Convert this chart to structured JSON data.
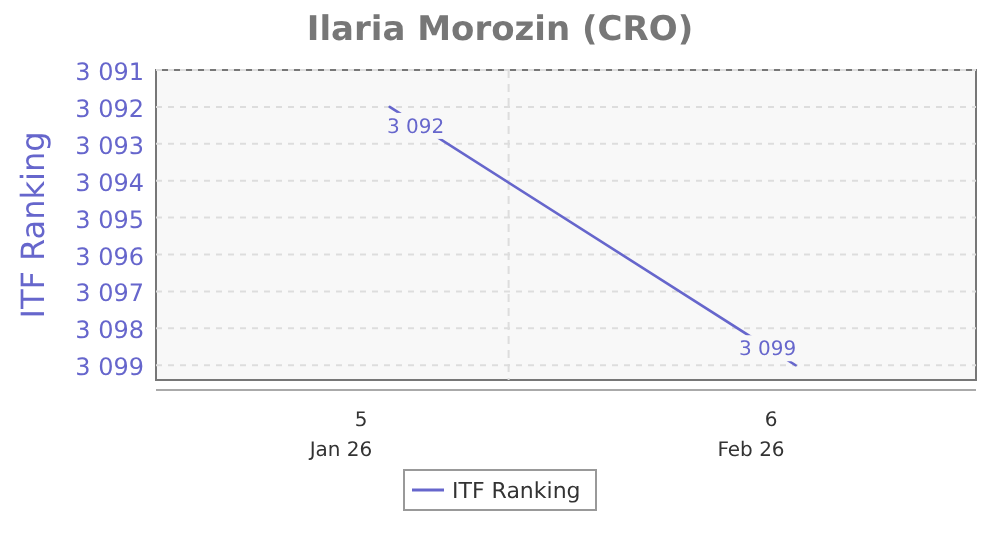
{
  "chart_data": {
    "type": "line",
    "title": "Ilaria Morozin (CRO)",
    "ylabel": "ITF Ranking",
    "x": [
      5.07,
      6.06
    ],
    "series": [
      {
        "name": "ITF Ranking",
        "color": "#6666cc",
        "values": [
          3092,
          3099
        ]
      }
    ],
    "xlim": [
      4.5,
      6.5
    ],
    "xticks": [
      5,
      6
    ],
    "ylim": [
      3099.4,
      3091
    ],
    "yticks": [
      {
        "value": 3091,
        "label": "3 091"
      },
      {
        "value": 3092,
        "label": "3 092"
      },
      {
        "value": 3093,
        "label": "3 093"
      },
      {
        "value": 3094,
        "label": "3 094"
      },
      {
        "value": 3095,
        "label": "3 095"
      },
      {
        "value": 3096,
        "label": "3 096"
      },
      {
        "value": 3097,
        "label": "3 097"
      },
      {
        "value": 3098,
        "label": "3 098"
      },
      {
        "value": 3099,
        "label": "3 099"
      }
    ],
    "value_labels": [
      "3 092",
      "3 099"
    ],
    "ref_lines": [
      {
        "axis": "x",
        "value": 5.36,
        "color": "#dddddd",
        "line_style": "dashed"
      }
    ],
    "annotations": [
      "Jan 26",
      "Feb 26"
    ],
    "grid": "y",
    "legend": "bottom",
    "marker": "none",
    "line_style": "solid"
  }
}
